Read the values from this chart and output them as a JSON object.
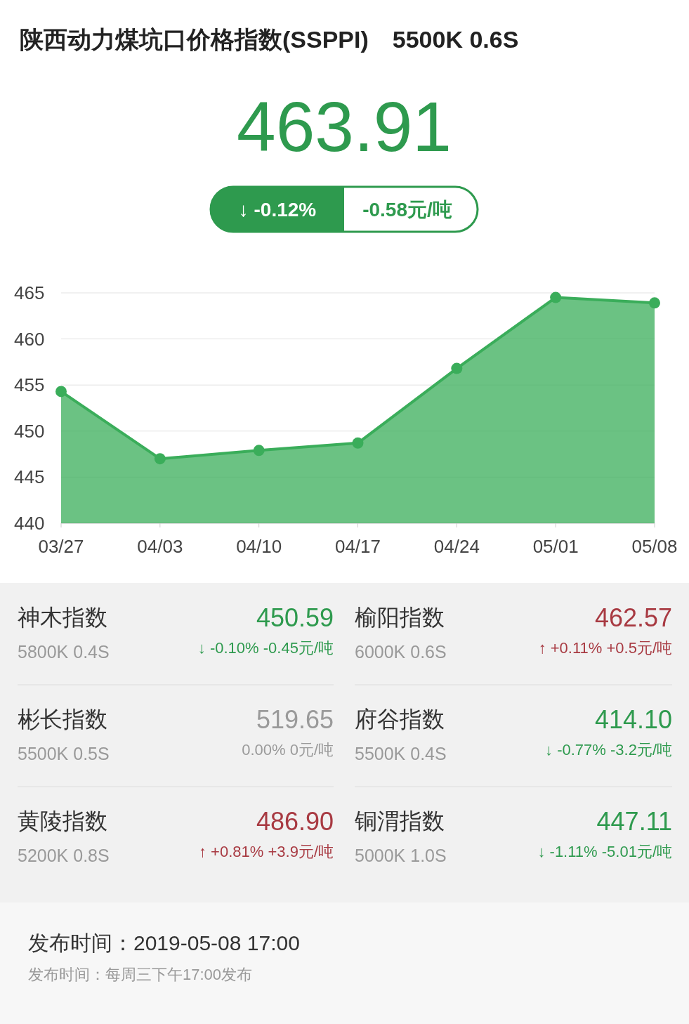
{
  "chart_data": [
    {
      "type": "area",
      "title": "陕西动力煤坑口价格指数(SSPPI)　5500K  0.6S",
      "annotations": [
        "463.91",
        "↓ -0.12%",
        "-0.58元/吨"
      ],
      "categories": [
        "03/27",
        "04/03",
        "04/10",
        "04/17",
        "04/24",
        "05/01",
        "05/08"
      ],
      "series": [
        {
          "color": "#3aad5a",
          "values": [
            454.3,
            447.0,
            447.9,
            448.7,
            456.8,
            464.5,
            463.91
          ]
        }
      ],
      "ylim": [
        440,
        465
      ],
      "yticks": [
        440,
        445,
        450,
        455,
        460,
        465
      ],
      "grid": "y",
      "marker": "circle"
    },
    {
      "type": "other",
      "colors": [
        "#2e9a4e",
        "#a83a42",
        "#9a9a9a",
        "#2e9a4e",
        "#a83a42",
        "#2e9a4e"
      ],
      "annotations": [
        "神木指数",
        "5800K 0.4S",
        "450.59",
        "↓ -0.10% -0.45元/吨",
        "榆阳指数",
        "6000K 0.6S",
        "462.57",
        "↑ +0.11% +0.5元/吨",
        "彬长指数",
        "5500K 0.5S",
        "519.65",
        "0.00% 0元/吨",
        "府谷指数",
        "5500K 0.4S",
        "414.10",
        "↓ -0.77% -3.2元/吨",
        "黄陵指数",
        "5200K 0.8S",
        "486.90",
        "↑ +0.81% +3.9元/吨",
        "铜渭指数",
        "5000K 1.0S",
        "447.11",
        "↓ -1.11% -5.01元/吨",
        "发布时间：2019-05-08 17:00",
        "发布时间：每周三下午17:00发布"
      ]
    }
  ]
}
